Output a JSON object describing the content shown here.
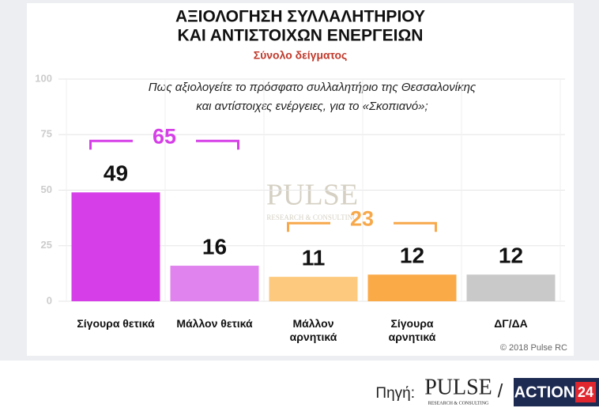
{
  "chart_data": {
    "type": "bar",
    "title": [
      "ΑΞΙΟΛΟΓΗΣΗ ΣΥΛΛΑΛΗΤΗΡΙΟΥ",
      "ΚΑΙ ΑΝΤΙΣΤΟΙΧΩΝ ΕΝΕΡΓΕΙΩΝ"
    ],
    "subtitle": "Σύνολο δείγματος",
    "question": [
      "Πως αξιολογείτε το πρόσφατο συλλαλητήριο της Θεσσαλονίκης",
      "και αντίστοιχες ενέργειες, για το «Σκοπιανό»;"
    ],
    "categories": [
      "Σίγουρα θετικά",
      "Μάλλον θετικά",
      "Μάλλον αρνητικά",
      "Σίγουρα αρνητικά",
      "ΔΓ/ΔΑ"
    ],
    "values": [
      49,
      16,
      11,
      12,
      12
    ],
    "colors": [
      "#d63fe8",
      "#e183ee",
      "#fdc97f",
      "#fbaa48",
      "#c9c9c9"
    ],
    "groups": [
      {
        "value": 65,
        "color": "#d63fe8",
        "span": [
          0,
          1
        ]
      },
      {
        "value": 23,
        "color": "#f7a84a",
        "span": [
          2,
          3
        ]
      }
    ],
    "ylim": [
      0,
      100
    ],
    "yticks": [
      0,
      25,
      50,
      75,
      100
    ],
    "grid": true,
    "copyright": "© 2018 Pulse RC",
    "watermark": [
      "PULSE",
      "RESEARCH & CONSULTING"
    ],
    "footer": {
      "source": "Πηγή:",
      "logo": [
        "PULSE",
        "RESEARCH & CONSULTING"
      ],
      "separator": "/",
      "channel": [
        "ACTION",
        "24"
      ]
    }
  }
}
